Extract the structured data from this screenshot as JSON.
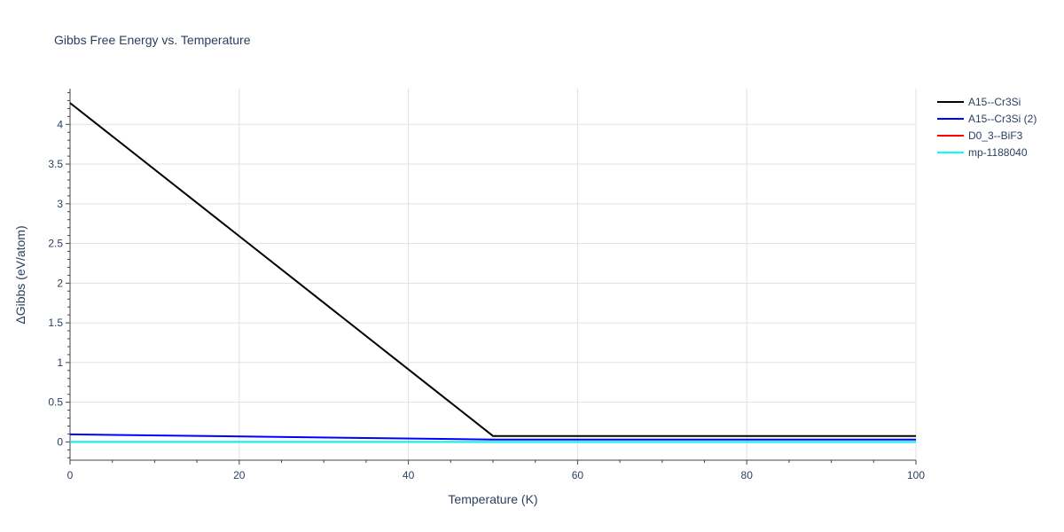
{
  "chart_data": {
    "type": "line",
    "title": "Gibbs Free Energy vs. Temperature",
    "xlabel": "Temperature (K)",
    "ylabel": "ΔGibbs (eV/atom)",
    "xlim": [
      0,
      100
    ],
    "ylim": [
      -0.23,
      4.45
    ],
    "xticks": [
      0,
      20,
      40,
      60,
      80,
      100
    ],
    "xtick_labels": [
      "0",
      "20",
      "40",
      "60",
      "80",
      "100"
    ],
    "yticks": [
      0,
      0.5,
      1,
      1.5,
      2,
      2.5,
      3,
      3.5,
      4
    ],
    "ytick_labels": [
      "0",
      "0.5",
      "1",
      "1.5",
      "2",
      "2.5",
      "3",
      "3.5",
      "4"
    ],
    "grid": true,
    "legend_position": "top-right",
    "series": [
      {
        "name": "A15--Cr3Si",
        "color": "#000000",
        "x": [
          0,
          50,
          100
        ],
        "y": [
          4.27,
          0.075,
          0.075
        ]
      },
      {
        "name": "A15--Cr3Si (2)",
        "color": "#0000ff",
        "x": [
          0,
          50,
          100
        ],
        "y": [
          0.095,
          0.03,
          0.03
        ]
      },
      {
        "name": "D0_3--BiF3",
        "color": "#ff0000",
        "x": [
          0,
          100
        ],
        "y": [
          0,
          0
        ]
      },
      {
        "name": "mp-1188040",
        "color": "#00ffff",
        "x": [
          0,
          100
        ],
        "y": [
          0,
          0
        ]
      }
    ]
  }
}
